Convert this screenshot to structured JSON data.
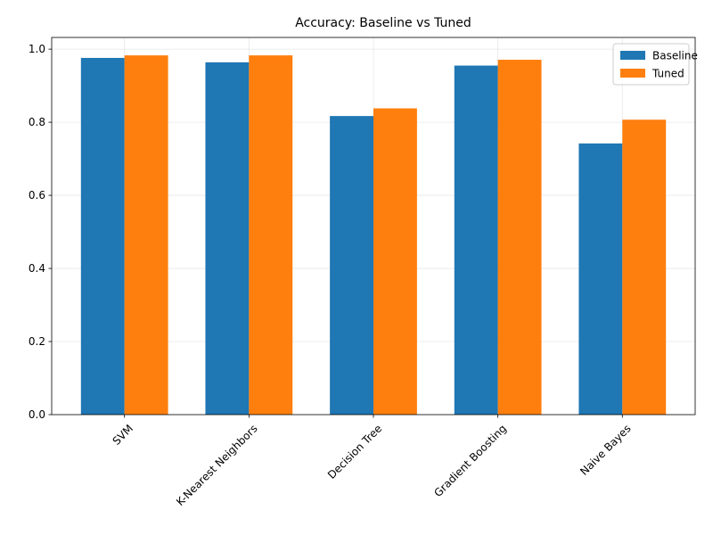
{
  "chart_data": {
    "type": "bar",
    "title": "Accuracy: Baseline vs Tuned",
    "xlabel": "",
    "ylabel": "",
    "categories": [
      "SVM",
      "K-Nearest Neighbors",
      "Decision Tree",
      "Gradient Boosting",
      "Naive Bayes"
    ],
    "series": [
      {
        "name": "Baseline",
        "color": "#1f77b4",
        "values": [
          0.976,
          0.964,
          0.817,
          0.955,
          0.742
        ]
      },
      {
        "name": "Tuned",
        "color": "#ff7f0e",
        "values": [
          0.983,
          0.983,
          0.838,
          0.971,
          0.807
        ]
      }
    ],
    "ylim": [
      0,
      1.032
    ],
    "yticks": [
      0.0,
      0.2,
      0.4,
      0.6,
      0.8,
      1.0
    ],
    "ytick_labels": [
      "0.0",
      "0.2",
      "0.4",
      "0.6",
      "0.8",
      "1.0"
    ],
    "grid": true,
    "legend_position": "top-right",
    "xtick_rotation": 45
  }
}
